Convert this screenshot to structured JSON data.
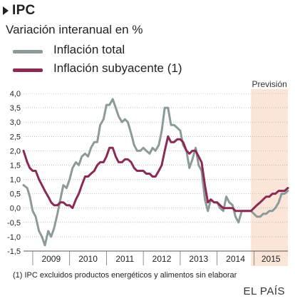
{
  "header": {
    "title": "IPC",
    "subtitle": "Variación interanual en %"
  },
  "footer": {
    "note": "(1) IPC excluidos productos energéticos y alimentos sin elaborar",
    "source": "EL PAÍS"
  },
  "colors": {
    "total": "#8c9a9a",
    "subyacente": "#8a2a55",
    "forecast_band": "#fbe4d8",
    "grid": "#999999"
  },
  "chart_data": {
    "type": "line",
    "title": "IPC",
    "subtitle": "Variación interanual en %",
    "ylim": [
      -1.5,
      4.0
    ],
    "yticks": [
      "4,0",
      "3,5",
      "3,0",
      "2,5",
      "2,0",
      "1,5",
      "1,0",
      "0,5",
      "0,0",
      "-0,5",
      "-1,0",
      "-1,5"
    ],
    "ytick_values": [
      4.0,
      3.5,
      3.0,
      2.5,
      2.0,
      1.5,
      1.0,
      0.5,
      0.0,
      -0.5,
      -1.0,
      -1.5
    ],
    "xlim": [
      2008.75,
      2015.92
    ],
    "year_labels": [
      "2009",
      "2010",
      "2011",
      "2012",
      "2013",
      "2014",
      "2015"
    ],
    "year_dividers": [
      2009,
      2010,
      2011,
      2012,
      2013,
      2014,
      2015
    ],
    "grid": true,
    "forecast": {
      "label": "Previsión",
      "from": 2014.92,
      "to": 2015.92
    },
    "series": [
      {
        "name": "Inflación total",
        "points": [
          [
            2008.75,
            0.8
          ],
          [
            2008.85,
            0.7
          ],
          [
            2008.92,
            0.4
          ],
          [
            2009.0,
            -0.1
          ],
          [
            2009.08,
            -0.3
          ],
          [
            2009.17,
            -0.8
          ],
          [
            2009.25,
            -1.0
          ],
          [
            2009.33,
            -1.3
          ],
          [
            2009.42,
            -0.8
          ],
          [
            2009.5,
            -1.0
          ],
          [
            2009.58,
            -0.7
          ],
          [
            2009.67,
            -0.2
          ],
          [
            2009.75,
            0.3
          ],
          [
            2009.83,
            0.8
          ],
          [
            2009.92,
            0.7
          ],
          [
            2010.0,
            1.0
          ],
          [
            2010.08,
            1.4
          ],
          [
            2010.17,
            1.6
          ],
          [
            2010.25,
            1.5
          ],
          [
            2010.33,
            1.8
          ],
          [
            2010.42,
            1.9
          ],
          [
            2010.5,
            1.8
          ],
          [
            2010.58,
            2.1
          ],
          [
            2010.67,
            2.3
          ],
          [
            2010.75,
            2.3
          ],
          [
            2010.83,
            2.9
          ],
          [
            2010.92,
            3.1
          ],
          [
            2011.0,
            3.6
          ],
          [
            2011.08,
            3.6
          ],
          [
            2011.17,
            3.8
          ],
          [
            2011.25,
            3.5
          ],
          [
            2011.33,
            3.2
          ],
          [
            2011.42,
            3.0
          ],
          [
            2011.5,
            3.1
          ],
          [
            2011.58,
            3.0
          ],
          [
            2011.67,
            2.6
          ],
          [
            2011.75,
            2.2
          ],
          [
            2011.83,
            2.0
          ],
          [
            2011.92,
            2.0
          ],
          [
            2012.0,
            2.1
          ],
          [
            2012.08,
            2.0
          ],
          [
            2012.17,
            1.9
          ],
          [
            2012.25,
            2.1
          ],
          [
            2012.33,
            2.0
          ],
          [
            2012.42,
            2.2
          ],
          [
            2012.5,
            2.7
          ],
          [
            2012.58,
            3.5
          ],
          [
            2012.67,
            3.5
          ],
          [
            2012.75,
            2.9
          ],
          [
            2012.83,
            2.9
          ],
          [
            2012.92,
            2.8
          ],
          [
            2013.0,
            2.7
          ],
          [
            2013.08,
            2.2
          ],
          [
            2013.17,
            2.0
          ],
          [
            2013.25,
            1.4
          ],
          [
            2013.33,
            1.7
          ],
          [
            2013.42,
            2.1
          ],
          [
            2013.5,
            1.5
          ],
          [
            2013.58,
            1.3
          ],
          [
            2013.67,
            0.3
          ],
          [
            2013.75,
            -0.1
          ],
          [
            2013.83,
            0.3
          ],
          [
            2013.92,
            0.2
          ],
          [
            2014.0,
            0.2
          ],
          [
            2014.08,
            0.0
          ],
          [
            2014.17,
            -0.1
          ],
          [
            2014.25,
            0.4
          ],
          [
            2014.33,
            0.2
          ],
          [
            2014.42,
            0.1
          ],
          [
            2014.5,
            -0.3
          ],
          [
            2014.58,
            -0.5
          ],
          [
            2014.67,
            -0.1
          ],
          [
            2014.75,
            -0.1
          ],
          [
            2014.83,
            -0.1
          ],
          [
            2014.92,
            -0.1
          ],
          [
            2015.0,
            -0.2
          ],
          [
            2015.08,
            -0.3
          ],
          [
            2015.17,
            -0.3
          ],
          [
            2015.25,
            -0.2
          ],
          [
            2015.33,
            -0.2
          ],
          [
            2015.42,
            -0.1
          ],
          [
            2015.5,
            -0.1
          ],
          [
            2015.58,
            0.0
          ],
          [
            2015.67,
            0.2
          ],
          [
            2015.75,
            0.5
          ],
          [
            2015.83,
            0.5
          ],
          [
            2015.92,
            0.6
          ]
        ]
      },
      {
        "name": "Inflación subyacente (1)",
        "points": [
          [
            2008.75,
            2.0
          ],
          [
            2008.85,
            1.6
          ],
          [
            2008.92,
            1.4
          ],
          [
            2009.0,
            1.3
          ],
          [
            2009.08,
            1.3
          ],
          [
            2009.17,
            1.0
          ],
          [
            2009.25,
            0.8
          ],
          [
            2009.33,
            0.6
          ],
          [
            2009.42,
            0.4
          ],
          [
            2009.5,
            0.2
          ],
          [
            2009.58,
            0.1
          ],
          [
            2009.67,
            0.1
          ],
          [
            2009.75,
            0.2
          ],
          [
            2009.83,
            0.2
          ],
          [
            2009.92,
            0.1
          ],
          [
            2010.0,
            0.1
          ],
          [
            2010.08,
            0.0
          ],
          [
            2010.17,
            0.3
          ],
          [
            2010.25,
            0.5
          ],
          [
            2010.33,
            0.8
          ],
          [
            2010.42,
            1.1
          ],
          [
            2010.5,
            1.1
          ],
          [
            2010.58,
            1.2
          ],
          [
            2010.67,
            1.3
          ],
          [
            2010.75,
            1.5
          ],
          [
            2010.83,
            1.6
          ],
          [
            2010.92,
            1.6
          ],
          [
            2011.0,
            1.8
          ],
          [
            2011.08,
            2.1
          ],
          [
            2011.17,
            2.1
          ],
          [
            2011.25,
            1.8
          ],
          [
            2011.33,
            1.6
          ],
          [
            2011.42,
            1.6
          ],
          [
            2011.5,
            1.7
          ],
          [
            2011.58,
            1.7
          ],
          [
            2011.67,
            1.6
          ],
          [
            2011.75,
            1.4
          ],
          [
            2011.83,
            1.3
          ],
          [
            2011.92,
            1.3
          ],
          [
            2012.0,
            1.3
          ],
          [
            2012.08,
            1.2
          ],
          [
            2012.17,
            1.2
          ],
          [
            2012.25,
            1.1
          ],
          [
            2012.33,
            1.1
          ],
          [
            2012.42,
            1.3
          ],
          [
            2012.5,
            1.5
          ],
          [
            2012.58,
            2.0
          ],
          [
            2012.67,
            2.5
          ],
          [
            2012.75,
            2.3
          ],
          [
            2012.83,
            2.3
          ],
          [
            2012.92,
            2.4
          ],
          [
            2013.0,
            2.4
          ],
          [
            2013.08,
            2.3
          ],
          [
            2013.17,
            2.0
          ],
          [
            2013.25,
            1.9
          ],
          [
            2013.33,
            2.0
          ],
          [
            2013.42,
            2.0
          ],
          [
            2013.5,
            1.8
          ],
          [
            2013.58,
            1.6
          ],
          [
            2013.67,
            0.8
          ],
          [
            2013.75,
            0.2
          ],
          [
            2013.83,
            0.3
          ],
          [
            2013.92,
            0.2
          ],
          [
            2014.0,
            0.2
          ],
          [
            2014.08,
            0.1
          ],
          [
            2014.17,
            0.0
          ],
          [
            2014.25,
            0.0
          ],
          [
            2014.33,
            0.0
          ],
          [
            2014.42,
            0.0
          ],
          [
            2014.5,
            -0.1
          ],
          [
            2014.58,
            -0.1
          ],
          [
            2014.67,
            -0.1
          ],
          [
            2014.75,
            -0.1
          ],
          [
            2014.83,
            -0.1
          ],
          [
            2014.92,
            -0.1
          ],
          [
            2015.0,
            0.0
          ],
          [
            2015.08,
            0.1
          ],
          [
            2015.17,
            0.2
          ],
          [
            2015.25,
            0.3
          ],
          [
            2015.33,
            0.4
          ],
          [
            2015.42,
            0.4
          ],
          [
            2015.5,
            0.5
          ],
          [
            2015.58,
            0.5
          ],
          [
            2015.67,
            0.6
          ],
          [
            2015.75,
            0.6
          ],
          [
            2015.83,
            0.6
          ],
          [
            2015.92,
            0.7
          ]
        ]
      }
    ]
  }
}
